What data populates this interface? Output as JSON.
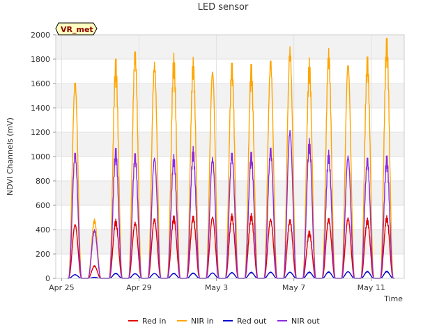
{
  "chart_data": {
    "type": "line",
    "title": "LED sensor",
    "xlabel": "Time",
    "ylabel": "NDVI Channels (mV)",
    "badge": "VR_met",
    "ylim": [
      0,
      2000
    ],
    "xlim_days": [
      -0.3,
      17.7
    ],
    "y_ticks": [
      0,
      200,
      400,
      600,
      800,
      1000,
      1200,
      1400,
      1600,
      1800,
      2000
    ],
    "x_ticks": [
      {
        "label": "Apr 25",
        "day": 0
      },
      {
        "label": "Apr 29",
        "day": 4
      },
      {
        "label": "May 3",
        "day": 8
      },
      {
        "label": "May 7",
        "day": 12
      },
      {
        "label": "May 11",
        "day": 16
      }
    ],
    "grid": true,
    "legend_position": "bottom",
    "daily_peaks_day": [
      0.7,
      1.7,
      2.8,
      3.8,
      4.8,
      5.8,
      6.8,
      7.8,
      8.8,
      9.8,
      10.8,
      11.8,
      12.8,
      13.8,
      14.8,
      15.8,
      16.8
    ],
    "series": [
      {
        "name": "Red in",
        "color": "#e00000",
        "peaks": [
          440,
          100,
          460,
          450,
          480,
          490,
          495,
          500,
          505,
          505,
          480,
          470,
          370,
          480,
          490,
          470,
          490
        ]
      },
      {
        "name": "NIR in",
        "color": "#ffa500",
        "peaks": [
          1600,
          470,
          1720,
          1820,
          1740,
          1750,
          1730,
          1690,
          1710,
          1680,
          1760,
          1850,
          1710,
          1810,
          1750,
          1750,
          1890
        ]
      },
      {
        "name": "Red out",
        "color": "#0000cc",
        "peaks": [
          30,
          8,
          40,
          38,
          40,
          40,
          42,
          44,
          46,
          48,
          50,
          50,
          50,
          52,
          54,
          55,
          56
        ]
      },
      {
        "name": "NIR out",
        "color": "#8a2be2",
        "peaks": [
          1010,
          390,
          1020,
          990,
          985,
          970,
          1025,
          975,
          1005,
          990,
          1040,
          1200,
          1090,
          1000,
          995,
          960,
          960
        ]
      }
    ]
  }
}
